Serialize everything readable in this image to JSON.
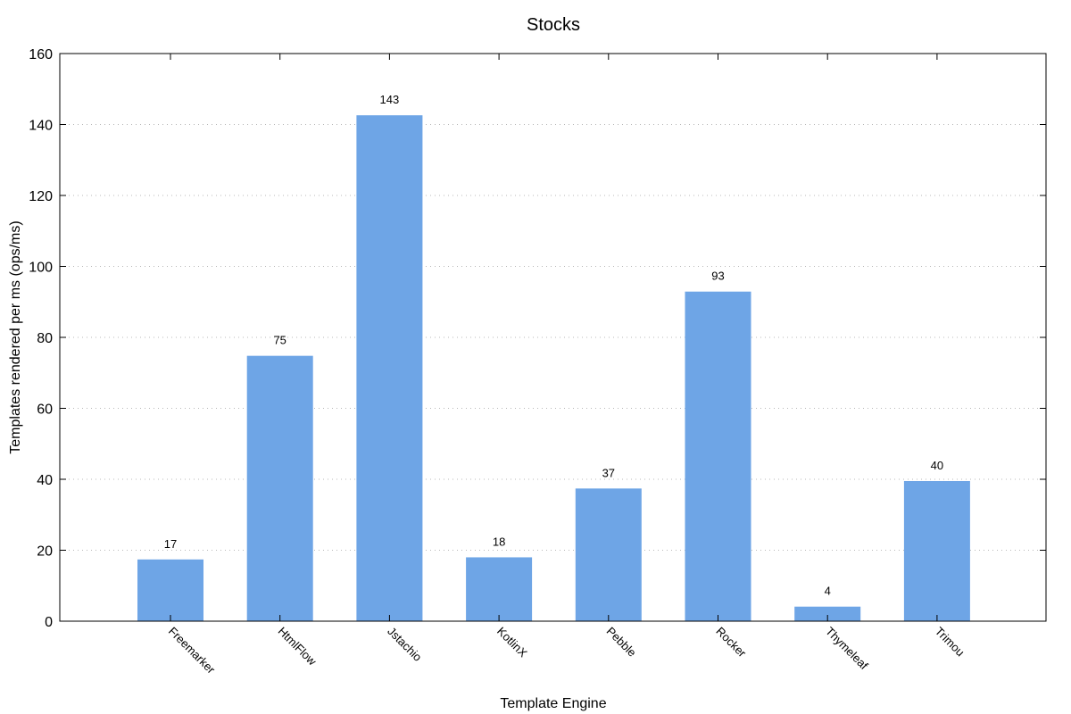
{
  "chart_data": {
    "type": "bar",
    "title": "Stocks",
    "xlabel": "Template Engine",
    "ylabel": "Templates rendered per ms (ops/ms)",
    "categories": [
      "Freemarker",
      "HtmlFlow",
      "Jstachio",
      "KotlinX",
      "Pebble",
      "Rocker",
      "Thymeleaf",
      "Trimou"
    ],
    "values": [
      17.4,
      74.8,
      142.6,
      18.0,
      37.4,
      92.9,
      4.1,
      39.5
    ],
    "data_labels": [
      "17",
      "75",
      "143",
      "18",
      "37",
      "93",
      "4",
      "40"
    ],
    "ylim": [
      0,
      160
    ],
    "yticks": [
      0,
      20,
      40,
      60,
      80,
      100,
      120,
      140,
      160
    ],
    "ytick_labels": [
      "0",
      "20",
      "40",
      "60",
      "80",
      "100",
      "120",
      "140",
      "160"
    ],
    "grid": true,
    "bar_color": "#6ea5e6"
  }
}
